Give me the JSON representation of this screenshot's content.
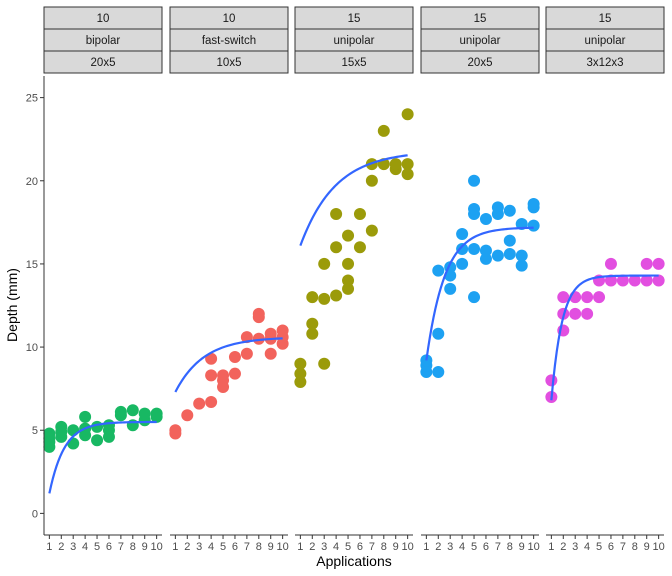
{
  "chart_data": {
    "type": "scatter",
    "xlabel": "Applications",
    "ylabel": "Depth (mm)",
    "ylim": [
      -1.3,
      26.3
    ],
    "xlim": [
      0.55,
      10.45
    ],
    "y_ticks": [
      0,
      5,
      10,
      15,
      20,
      25
    ],
    "x_ticks": [
      1,
      2,
      3,
      4,
      5,
      6,
      7,
      8,
      9,
      10
    ],
    "grid": false,
    "legend": "none",
    "fit_color": "#3366FF",
    "strip_fill": "#D9D9D9",
    "panels": [
      {
        "strips": [
          "10",
          "bipolar",
          "20x5"
        ],
        "color": "#18B863",
        "points": [
          [
            1,
            4.0
          ],
          [
            1,
            4.5
          ],
          [
            1,
            4.8
          ],
          [
            1,
            4.3
          ],
          [
            2,
            4.6
          ],
          [
            2,
            5.2
          ],
          [
            2,
            4.9
          ],
          [
            3,
            4.2
          ],
          [
            3,
            5.0
          ],
          [
            4,
            5.8
          ],
          [
            4,
            4.7
          ],
          [
            4,
            5.1
          ],
          [
            5,
            5.2
          ],
          [
            5,
            4.4
          ],
          [
            6,
            4.6
          ],
          [
            6,
            5.0
          ],
          [
            6,
            5.3
          ],
          [
            7,
            5.9
          ],
          [
            7,
            6.1
          ],
          [
            8,
            5.3
          ],
          [
            8,
            6.2
          ],
          [
            9,
            5.6
          ],
          [
            9,
            6.0
          ],
          [
            10,
            5.8
          ],
          [
            10,
            6.0
          ]
        ],
        "fit": {
          "a": 5.5,
          "b": 4.3,
          "k": 0.8,
          "x0": 1
        }
      },
      {
        "strips": [
          "10",
          "fast-switch",
          "10x5"
        ],
        "color": "#F2635C",
        "points": [
          [
            1,
            4.8
          ],
          [
            1,
            5.0
          ],
          [
            2,
            5.9
          ],
          [
            3,
            6.6
          ],
          [
            4,
            6.7
          ],
          [
            4,
            8.3
          ],
          [
            4,
            9.3
          ],
          [
            5,
            7.6
          ],
          [
            5,
            8.0
          ],
          [
            5,
            8.3
          ],
          [
            6,
            8.4
          ],
          [
            6,
            9.4
          ],
          [
            7,
            9.6
          ],
          [
            7,
            10.6
          ],
          [
            8,
            10.5
          ],
          [
            8,
            11.8
          ],
          [
            8,
            12.0
          ],
          [
            9,
            9.6
          ],
          [
            9,
            10.5
          ],
          [
            9,
            10.8
          ],
          [
            10,
            10.2
          ],
          [
            10,
            10.6
          ],
          [
            10,
            11.0
          ]
        ],
        "fit": {
          "a": 10.6,
          "b": 3.3,
          "k": 0.42,
          "x0": 1
        }
      },
      {
        "strips": [
          "15",
          "unipolar",
          "15x5"
        ],
        "color": "#9B9B0A",
        "points": [
          [
            1,
            7.9
          ],
          [
            1,
            8.4
          ],
          [
            1,
            9.0
          ],
          [
            2,
            10.8
          ],
          [
            2,
            11.4
          ],
          [
            2,
            13.0
          ],
          [
            3,
            9.0
          ],
          [
            3,
            12.9
          ],
          [
            3,
            15.0
          ],
          [
            4,
            13.1
          ],
          [
            4,
            16.0
          ],
          [
            4,
            18.0
          ],
          [
            5,
            13.5
          ],
          [
            5,
            14.0
          ],
          [
            5,
            15.0
          ],
          [
            5,
            16.7
          ],
          [
            6,
            16.0
          ],
          [
            6,
            18.0
          ],
          [
            7,
            17.0
          ],
          [
            7,
            20.0
          ],
          [
            7,
            21.0
          ],
          [
            8,
            21.0
          ],
          [
            8,
            23.0
          ],
          [
            9,
            20.7
          ],
          [
            9,
            21.0
          ],
          [
            10,
            20.4
          ],
          [
            10,
            21.0
          ],
          [
            10,
            24.0
          ]
        ],
        "fit": {
          "a": 21.8,
          "b": 5.7,
          "k": 0.34,
          "x0": 1
        }
      },
      {
        "strips": [
          "15",
          "unipolar",
          "20x5"
        ],
        "color": "#1DA1F2",
        "points": [
          [
            1,
            8.5
          ],
          [
            1,
            8.9
          ],
          [
            1,
            9.2
          ],
          [
            2,
            8.5
          ],
          [
            2,
            10.8
          ],
          [
            2,
            14.6
          ],
          [
            3,
            13.5
          ],
          [
            3,
            14.3
          ],
          [
            3,
            14.8
          ],
          [
            4,
            15.0
          ],
          [
            4,
            15.9
          ],
          [
            4,
            16.8
          ],
          [
            5,
            13.0
          ],
          [
            5,
            15.9
          ],
          [
            5,
            18.0
          ],
          [
            5,
            18.3
          ],
          [
            5,
            20.0
          ],
          [
            6,
            15.3
          ],
          [
            6,
            15.8
          ],
          [
            6,
            17.7
          ],
          [
            7,
            15.5
          ],
          [
            7,
            18.0
          ],
          [
            7,
            18.4
          ],
          [
            8,
            15.6
          ],
          [
            8,
            16.4
          ],
          [
            8,
            18.2
          ],
          [
            9,
            14.9
          ],
          [
            9,
            15.5
          ],
          [
            9,
            17.4
          ],
          [
            10,
            17.3
          ],
          [
            10,
            18.4
          ],
          [
            10,
            18.6
          ]
        ],
        "fit": {
          "a": 17.2,
          "b": 8.0,
          "k": 0.65,
          "x0": 1
        }
      },
      {
        "strips": [
          "15",
          "unipolar",
          "3x12x3"
        ],
        "color": "#E24FE0",
        "points": [
          [
            1,
            7.0
          ],
          [
            1,
            8.0
          ],
          [
            2,
            11.0
          ],
          [
            2,
            12.0
          ],
          [
            2,
            13.0
          ],
          [
            3,
            12.0
          ],
          [
            3,
            13.0
          ],
          [
            4,
            12.0
          ],
          [
            4,
            13.0
          ],
          [
            5,
            13.0
          ],
          [
            5,
            14.0
          ],
          [
            6,
            14.0
          ],
          [
            6,
            15.0
          ],
          [
            7,
            14.0
          ],
          [
            8,
            14.0
          ],
          [
            9,
            14.0
          ],
          [
            9,
            15.0
          ],
          [
            10,
            14.0
          ],
          [
            10,
            15.0
          ]
        ],
        "fit": {
          "a": 14.3,
          "b": 7.5,
          "k": 1.1,
          "x0": 1
        }
      }
    ]
  }
}
